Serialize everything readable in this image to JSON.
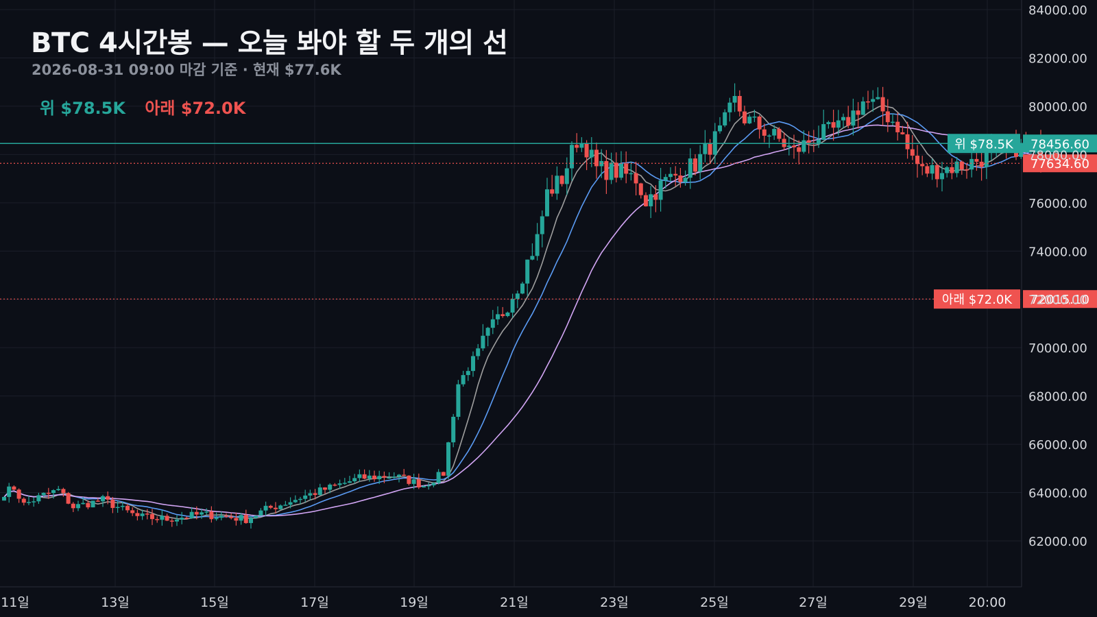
{
  "header": {
    "title": "BTC 4시간봉 — 오늘 봐야 할 두 개의 선",
    "subtitle": "2026-08-31 09:00 마감 기준 · 현재 $77.6K"
  },
  "legend": {
    "upper": "위 $78.5K",
    "lower": "아래 $72.0K"
  },
  "colors": {
    "background": "#0c0f17",
    "grid": "#1b1f2a",
    "up_candle": "#26a69a",
    "down_candle": "#ef5350",
    "ma_fast": "#9e9e9e",
    "ma_mid": "#5b9cf5",
    "ma_slow": "#d3a6f5",
    "axis_text": "#d6d8dd"
  },
  "chart_data": {
    "type": "candlestick",
    "interval": "4h",
    "y_axis": {
      "range": [
        60000,
        84000
      ],
      "ticks": [
        62000,
        64000,
        66000,
        68000,
        70000,
        72000,
        74000,
        76000,
        78000,
        80000,
        82000,
        84000
      ],
      "tick_labels": [
        "62000.00",
        "64000.00",
        "66000.00",
        "68000.00",
        "70000.00",
        "72000.00",
        "74000.00",
        "76000.00",
        "78000.00",
        "80000.00",
        "82000.00",
        "84000.00"
      ]
    },
    "x_axis": {
      "tick_labels": [
        "11일",
        "13일",
        "15일",
        "17일",
        "19일",
        "21일",
        "23일",
        "25일",
        "27일",
        "29일",
        "20:00"
      ]
    },
    "price_lines": [
      {
        "name": "upper",
        "value": 78456.6,
        "axis_label": "78456.60",
        "tag": "위 $78.5K",
        "color": "#26a69a",
        "style": "solid"
      },
      {
        "name": "lower",
        "value": 72015.1,
        "axis_label": "72015.10",
        "tag": "아래 $72.0K",
        "color": "#ef5350",
        "style": "dotted"
      },
      {
        "name": "last",
        "value": 77634.6,
        "axis_label": "77634.60",
        "tag": "",
        "color": "#ef5350",
        "style": "dotted"
      }
    ],
    "close_anchors": [
      [
        0,
        64000
      ],
      [
        2,
        64200
      ],
      [
        4,
        63500
      ],
      [
        8,
        63900
      ],
      [
        11,
        64100
      ],
      [
        14,
        63400
      ],
      [
        20,
        63700
      ],
      [
        27,
        63000
      ],
      [
        33,
        62900
      ],
      [
        40,
        63100
      ],
      [
        45,
        63000
      ],
      [
        49,
        62900
      ],
      [
        53,
        63300
      ],
      [
        56,
        63500
      ],
      [
        60,
        63800
      ],
      [
        66,
        64200
      ],
      [
        72,
        64600
      ],
      [
        79,
        64700
      ],
      [
        85,
        64300
      ],
      [
        89,
        64800
      ],
      [
        92,
        68500
      ],
      [
        95,
        69500
      ],
      [
        98,
        70500
      ],
      [
        101,
        71500
      ],
      [
        104,
        72600
      ],
      [
        108,
        74500
      ],
      [
        110,
        76400
      ],
      [
        113,
        77000
      ],
      [
        116,
        78600
      ],
      [
        118,
        78300
      ],
      [
        120,
        77400
      ],
      [
        124,
        77300
      ],
      [
        128,
        77000
      ],
      [
        130,
        76100
      ],
      [
        134,
        76900
      ],
      [
        140,
        77600
      ],
      [
        145,
        78900
      ],
      [
        148,
        80200
      ],
      [
        150,
        79500
      ],
      [
        154,
        79000
      ],
      [
        157,
        78600
      ],
      [
        160,
        78100
      ],
      [
        164,
        78700
      ],
      [
        168,
        79000
      ],
      [
        170,
        79200
      ],
      [
        174,
        80200
      ],
      [
        177,
        80000
      ],
      [
        181,
        79200
      ],
      [
        183,
        78200
      ],
      [
        186,
        77300
      ],
      [
        190,
        77400
      ],
      [
        195,
        77600
      ],
      [
        200,
        78000
      ],
      [
        205,
        78300
      ],
      [
        210,
        78100
      ],
      [
        212,
        78400
      ],
      [
        214,
        77634.6
      ]
    ],
    "moving_averages": [
      {
        "key": "ma_fast",
        "period": 7
      },
      {
        "key": "ma_mid",
        "period": 14
      },
      {
        "key": "ma_slow",
        "period": 30
      }
    ]
  }
}
